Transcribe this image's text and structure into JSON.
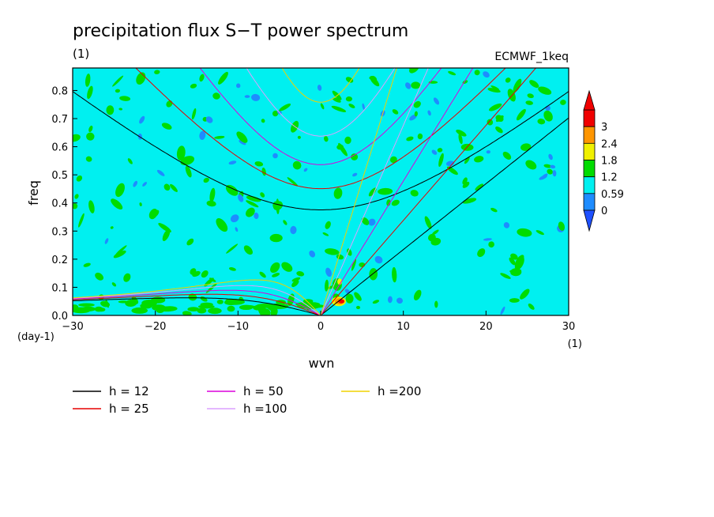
{
  "chart_data": {
    "type": "heatmap",
    "title": "precipitation flux S−T power spectrum",
    "subtitle_left": "(1)",
    "subtitle_right": "ECMWF_1keq",
    "xlabel": "wvn",
    "ylabel": "freq",
    "x_unit": "(1)",
    "y_unit": "(day-1)",
    "xlim": [
      -30,
      30
    ],
    "ylim": [
      0,
      0.88
    ],
    "x_ticks": [
      -30,
      -20,
      -10,
      0,
      10,
      20,
      30
    ],
    "x_tick_labels": [
      "−30",
      "−20",
      "−10",
      "0",
      "10",
      "20",
      "30"
    ],
    "y_ticks": [
      0.0,
      0.1,
      0.2,
      0.3,
      0.4,
      0.5,
      0.6,
      0.7,
      0.8
    ],
    "y_tick_labels": [
      "0.0",
      "0.1",
      "0.2",
      "0.3",
      "0.4",
      "0.5",
      "0.6",
      "0.7",
      "0.8"
    ],
    "background_level_color": "#00f0f0",
    "colorbar": {
      "levels": [
        "0",
        "0.59",
        "1.2",
        "1.8",
        "2.4",
        "3"
      ],
      "colors": [
        "#1e8cff",
        "#00f0f0",
        "#00dc00",
        "#f0f000",
        "#ff9600",
        "#f00000"
      ],
      "under_color": "#1e50ff",
      "over_color": "#f00000"
    },
    "dispersion_curves": [
      {
        "name": "h = 12",
        "h": 12,
        "color": "#000000"
      },
      {
        "name": "h = 25",
        "h": 25,
        "color": "#e60000"
      },
      {
        "name": "h = 50",
        "h": 50,
        "color": "#dc00dc"
      },
      {
        "name": "h =100",
        "h": 100,
        "color": "#dca0ff"
      },
      {
        "name": "h =200",
        "h": 200,
        "color": "#f0d200"
      }
    ],
    "curve_families": [
      "kelvin",
      "rossby_n1",
      "inertio_gravity_n1"
    ]
  }
}
